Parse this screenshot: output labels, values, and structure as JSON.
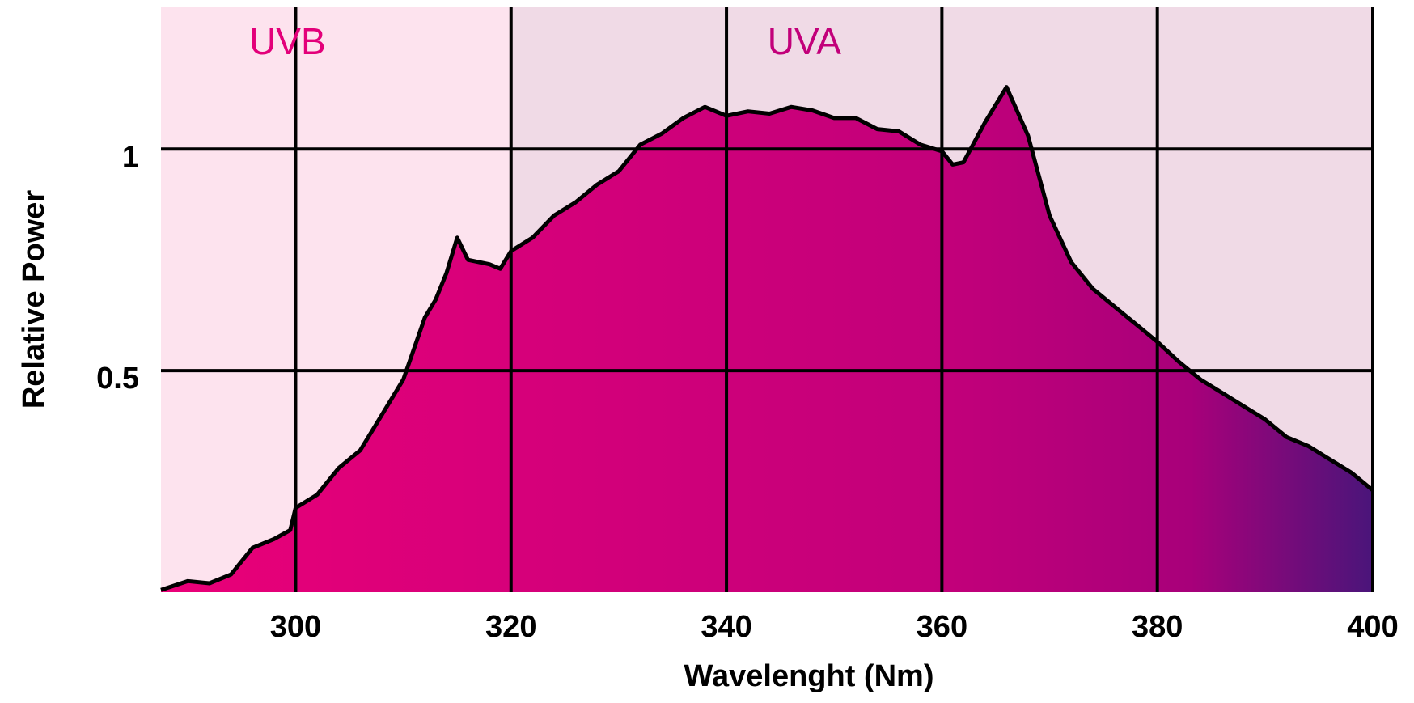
{
  "chart_data": {
    "type": "area",
    "x_label": "Wavelenght (Nm)",
    "y_label": "Relative Power",
    "x": [
      287.5,
      290,
      292,
      294,
      296,
      298,
      299.5,
      300,
      302,
      304,
      306,
      308,
      310,
      311,
      312,
      313,
      314,
      315,
      316,
      318,
      319,
      320,
      322,
      324,
      326,
      328,
      330,
      332,
      334,
      336,
      338,
      340,
      342,
      344,
      346,
      348,
      350,
      352,
      354,
      356,
      358,
      360,
      361,
      362,
      364,
      366,
      368,
      370,
      372,
      374,
      376,
      378,
      380,
      382,
      384,
      386,
      388,
      390,
      392,
      394,
      396,
      398,
      400
    ],
    "series": [
      {
        "name": "Relative Power",
        "color": "#000000",
        "values": [
          0.005,
          0.025,
          0.02,
          0.04,
          0.1,
          0.12,
          0.14,
          0.19,
          0.22,
          0.28,
          0.32,
          0.4,
          0.48,
          0.55,
          0.62,
          0.66,
          0.72,
          0.8,
          0.75,
          0.74,
          0.73,
          0.77,
          0.8,
          0.85,
          0.88,
          0.92,
          0.95,
          1.01,
          1.035,
          1.07,
          1.095,
          1.075,
          1.085,
          1.08,
          1.095,
          1.087,
          1.07,
          1.07,
          1.045,
          1.04,
          1.01,
          0.995,
          0.965,
          0.97,
          1.06,
          1.14,
          1.03,
          0.85,
          0.745,
          0.685,
          0.645,
          0.605,
          0.565,
          0.52,
          0.48,
          0.45,
          0.42,
          0.39,
          0.35,
          0.33,
          0.3,
          0.27,
          0.23
        ]
      }
    ],
    "regions": [
      {
        "label": "UVB",
        "range": [
          287.5,
          320
        ],
        "color": "#fde3ee",
        "label_color": "#e3007a"
      },
      {
        "label": "UVA",
        "range": [
          320,
          400
        ],
        "color": "#f0dae6",
        "label_color": "#c2007a"
      }
    ],
    "xlim": [
      287.5,
      400
    ],
    "ylim": [
      0,
      1.32
    ],
    "xticks": [
      300,
      320,
      340,
      360,
      380,
      400
    ],
    "yticks": [
      0.5,
      1
    ],
    "grid": true
  }
}
